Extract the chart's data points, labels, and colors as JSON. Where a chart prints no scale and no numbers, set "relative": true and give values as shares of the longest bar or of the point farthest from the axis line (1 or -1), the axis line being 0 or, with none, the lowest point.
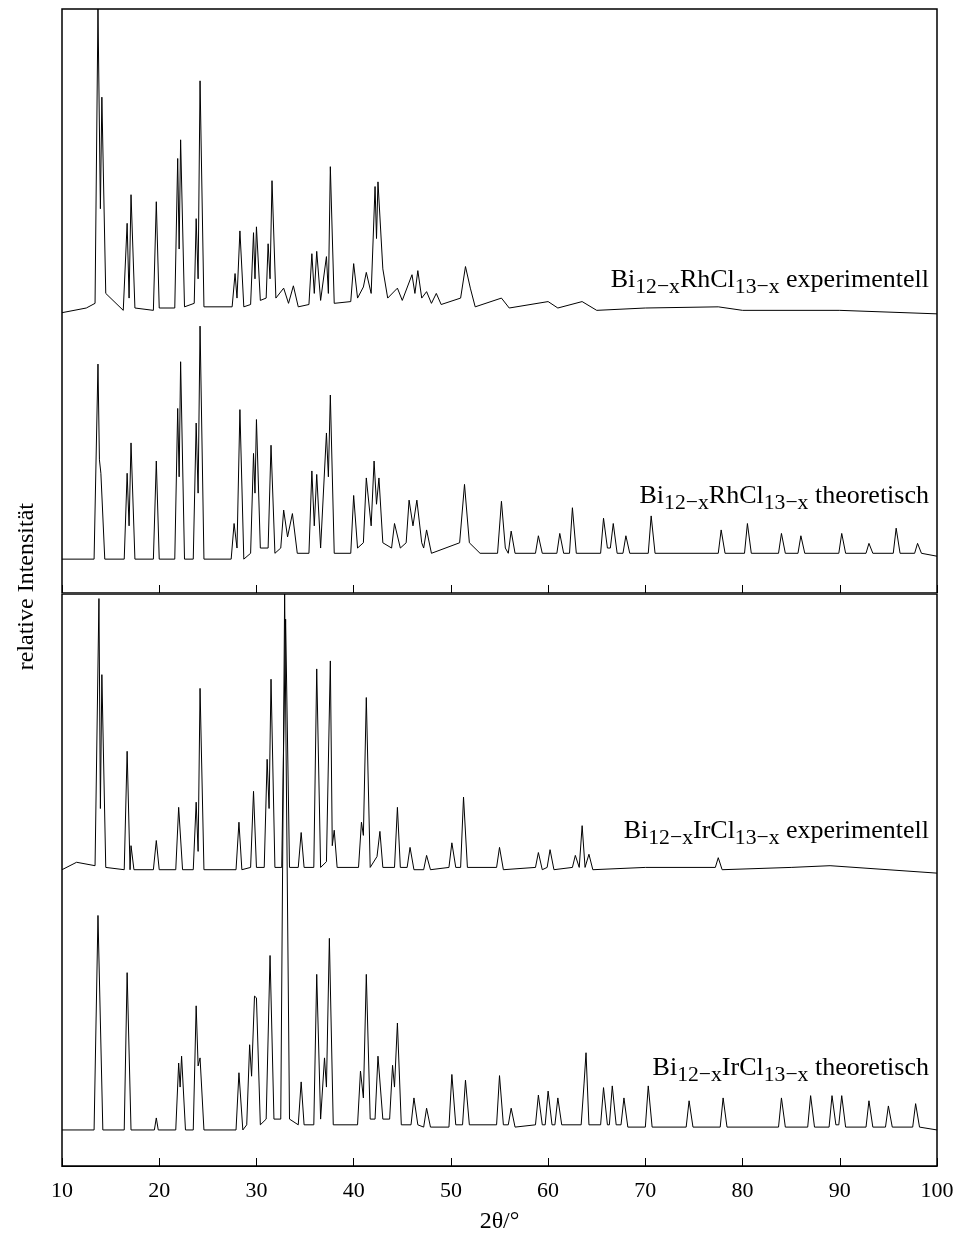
{
  "chart_data": [
    {
      "type": "line",
      "ylabel": "relative Intensität",
      "relative": true,
      "xlim": [
        10,
        100
      ],
      "xticks": [
        10,
        20,
        30,
        40,
        50,
        60,
        70,
        80,
        90,
        100
      ],
      "tick_labels": false,
      "marker": "none",
      "series": [
        {
          "name": "Bi$_{12−x}$RhCl$_{13−x}$ experimentell",
          "color": "#000000",
          "x": [
            10,
            12.5,
            13.4,
            13.7,
            13.95,
            14.1,
            14.5,
            16.3,
            16.7,
            16.9,
            17.1,
            17.5,
            19.4,
            19.7,
            20,
            21.6,
            21.9,
            22.05,
            22.2,
            22.6,
            23.6,
            23.8,
            24,
            24.2,
            24.6,
            27.5,
            27.8,
            28,
            28.3,
            28.7,
            29.4,
            29.7,
            29.85,
            30,
            30.4,
            31,
            31.2,
            31.4,
            31.6,
            32,
            32.8,
            33.3,
            33.8,
            34.3,
            35.4,
            35.7,
            35.95,
            36.2,
            36.6,
            37.2,
            37.4,
            37.6,
            38,
            39.7,
            40,
            40.4,
            41,
            41.3,
            41.8,
            42.2,
            42.35,
            42.5,
            43,
            43.5,
            44.5,
            45,
            46,
            46.3,
            46.6,
            47,
            47.5,
            48,
            48.5,
            49,
            51,
            51.5,
            52,
            52.5,
            55.2,
            56,
            60,
            61,
            63.5,
            65,
            70,
            77.5,
            80,
            90,
            100
          ],
          "values": [
            0.48,
            0.488,
            0.496,
            1.0,
            0.658,
            0.849,
            0.513,
            0.484,
            0.633,
            0.505,
            0.682,
            0.488,
            0.484,
            0.67,
            0.488,
            0.488,
            0.744,
            0.589,
            0.776,
            0.49,
            0.496,
            0.641,
            0.538,
            0.877,
            0.49,
            0.49,
            0.547,
            0.505,
            0.62,
            0.49,
            0.494,
            0.617,
            0.538,
            0.627,
            0.501,
            0.505,
            0.598,
            0.538,
            0.706,
            0.505,
            0.522,
            0.496,
            0.526,
            0.49,
            0.494,
            0.581,
            0.513,
            0.585,
            0.501,
            0.576,
            0.513,
            0.73,
            0.496,
            0.499,
            0.564,
            0.505,
            0.524,
            0.549,
            0.513,
            0.696,
            0.607,
            0.704,
            0.555,
            0.505,
            0.522,
            0.501,
            0.545,
            0.513,
            0.552,
            0.505,
            0.516,
            0.496,
            0.513,
            0.494,
            0.505,
            0.559,
            0.522,
            0.49,
            0.505,
            0.488,
            0.499,
            0.488,
            0.499,
            0.484,
            0.488,
            0.49,
            0.484,
            0.484,
            0.478
          ]
        },
        {
          "name": "Bi$_{12−x}$RhCl$_{13−x}$ theoretisch",
          "color": "#000000",
          "x": [
            10,
            13.3,
            13.7,
            13.85,
            14,
            14.4,
            16.4,
            16.7,
            16.9,
            17.1,
            17.5,
            19.4,
            19.7,
            20,
            21.6,
            21.9,
            22.05,
            22.2,
            22.6,
            23.5,
            23.8,
            24,
            24.2,
            24.6,
            27.4,
            27.7,
            28,
            28.3,
            28.7,
            29.4,
            29.7,
            29.85,
            30,
            30.4,
            31.2,
            31.5,
            31.9,
            32.5,
            32.8,
            33.2,
            33.7,
            34.2,
            35.4,
            35.7,
            35.95,
            36.2,
            36.6,
            37.2,
            37.4,
            37.6,
            38,
            39.7,
            40,
            40.4,
            41,
            41.3,
            41.8,
            42.1,
            42.35,
            42.6,
            43,
            43.9,
            44.2,
            44.8,
            45.4,
            45.7,
            46.1,
            46.5,
            47,
            47.2,
            47.5,
            48,
            50.9,
            51.4,
            51.9,
            53,
            54.8,
            55.2,
            55.6,
            55.9,
            56.2,
            56.6,
            58.7,
            59,
            59.4,
            60.9,
            61.2,
            61.6,
            62.2,
            62.5,
            62.9,
            65.4,
            65.7,
            66.1,
            66.4,
            66.7,
            67.1,
            67.7,
            68,
            68.4,
            70.3,
            70.6,
            71,
            77.5,
            77.8,
            78.2,
            80.2,
            80.5,
            80.9,
            83.7,
            84,
            84.4,
            85.7,
            86,
            86.4,
            89.9,
            90.2,
            90.6,
            92.7,
            93,
            93.4,
            95.5,
            95.8,
            96.2,
            97.7,
            98,
            98.4,
            100
          ],
          "values": [
            0.058,
            0.058,
            0.392,
            0.228,
            0.205,
            0.058,
            0.058,
            0.205,
            0.115,
            0.257,
            0.058,
            0.058,
            0.226,
            0.058,
            0.058,
            0.316,
            0.199,
            0.396,
            0.058,
            0.058,
            0.291,
            0.171,
            0.457,
            0.058,
            0.058,
            0.119,
            0.077,
            0.314,
            0.058,
            0.068,
            0.239,
            0.171,
            0.297,
            0.077,
            0.077,
            0.253,
            0.068,
            0.077,
            0.142,
            0.096,
            0.136,
            0.068,
            0.068,
            0.209,
            0.115,
            0.203,
            0.077,
            0.274,
            0.199,
            0.339,
            0.068,
            0.068,
            0.167,
            0.077,
            0.086,
            0.197,
            0.115,
            0.226,
            0.152,
            0.197,
            0.086,
            0.077,
            0.119,
            0.077,
            0.086,
            0.159,
            0.115,
            0.159,
            0.086,
            0.077,
            0.108,
            0.068,
            0.086,
            0.186,
            0.086,
            0.068,
            0.068,
            0.157,
            0.077,
            0.068,
            0.106,
            0.068,
            0.068,
            0.098,
            0.068,
            0.068,
            0.102,
            0.068,
            0.068,
            0.146,
            0.068,
            0.068,
            0.128,
            0.077,
            0.077,
            0.119,
            0.068,
            0.068,
            0.098,
            0.068,
            0.068,
            0.132,
            0.068,
            0.068,
            0.108,
            0.068,
            0.068,
            0.119,
            0.068,
            0.068,
            0.102,
            0.068,
            0.068,
            0.098,
            0.068,
            0.068,
            0.102,
            0.068,
            0.068,
            0.085,
            0.068,
            0.068,
            0.111,
            0.068,
            0.068,
            0.085,
            0.068,
            0.063
          ]
        }
      ]
    },
    {
      "type": "line",
      "xlabel": "2θ/°",
      "relative": true,
      "xlim": [
        10,
        100
      ],
      "xticks": [
        10,
        20,
        30,
        40,
        50,
        60,
        70,
        80,
        90,
        100
      ],
      "tick_labels": "x",
      "marker": "none",
      "series": [
        {
          "name": "Bi$_{12−x}$IrCl$_{13−x}$ experimentell",
          "color": "#000000",
          "x": [
            10,
            11.5,
            13.4,
            13.8,
            13.95,
            14.1,
            14.5,
            16.4,
            16.7,
            17,
            17.1,
            17.4,
            19.4,
            19.7,
            20,
            21.7,
            22,
            22.4,
            23.5,
            23.8,
            24,
            24.2,
            24.6,
            27.9,
            28.2,
            28.5,
            29.4,
            29.7,
            30,
            30.8,
            31.1,
            31.3,
            31.5,
            31.9,
            32.6,
            33,
            33.4,
            34.3,
            34.6,
            34.9,
            35.9,
            36.2,
            36.6,
            37.2,
            37.6,
            37.8,
            38,
            38.3,
            40.5,
            40.8,
            41,
            41.3,
            41.7,
            42.4,
            42.7,
            43,
            44.2,
            44.5,
            44.8,
            45.5,
            45.8,
            46.2,
            47.2,
            47.5,
            47.9,
            49.8,
            50.1,
            50.5,
            51,
            51.3,
            51.7,
            54.7,
            55,
            55.4,
            58.7,
            59,
            59.4,
            59.9,
            60.2,
            60.6,
            62.5,
            62.8,
            63.2,
            63.5,
            63.8,
            64.2,
            64.6,
            70,
            77.2,
            77.5,
            77.9,
            85,
            89,
            100
          ],
          "values": [
            0.518,
            0.531,
            0.525,
            0.992,
            0.625,
            0.859,
            0.522,
            0.518,
            0.725,
            0.518,
            0.56,
            0.518,
            0.518,
            0.569,
            0.518,
            0.518,
            0.627,
            0.518,
            0.518,
            0.636,
            0.55,
            0.835,
            0.518,
            0.518,
            0.601,
            0.518,
            0.522,
            0.655,
            0.522,
            0.522,
            0.711,
            0.625,
            0.851,
            0.522,
            0.522,
            0.956,
            0.522,
            0.522,
            0.583,
            0.522,
            0.522,
            0.869,
            0.522,
            0.532,
            0.883,
            0.56,
            0.587,
            0.522,
            0.522,
            0.601,
            0.578,
            0.819,
            0.522,
            0.541,
            0.585,
            0.522,
            0.522,
            0.627,
            0.522,
            0.522,
            0.557,
            0.518,
            0.518,
            0.543,
            0.518,
            0.522,
            0.565,
            0.522,
            0.522,
            0.645,
            0.522,
            0.522,
            0.557,
            0.518,
            0.522,
            0.548,
            0.518,
            0.522,
            0.553,
            0.518,
            0.522,
            0.543,
            0.522,
            0.595,
            0.522,
            0.545,
            0.518,
            0.522,
            0.522,
            0.539,
            0.518,
            0.522,
            0.525,
            0.512
          ]
        },
        {
          "name": "Bi$_{12−x}$IrCl$_{13−x}$ theoretisch",
          "color": "#000000",
          "x": [
            10,
            13.3,
            13.7,
            14.2,
            16.4,
            16.7,
            17.1,
            19.5,
            19.7,
            19.9,
            21.7,
            22,
            22.15,
            22.3,
            22.7,
            23.5,
            23.8,
            24,
            24.2,
            24.6,
            27.9,
            28.2,
            28.6,
            29,
            29.3,
            29.5,
            29.8,
            30,
            30.4,
            31,
            31.4,
            31.8,
            32.5,
            32.9,
            33.4,
            34.3,
            34.6,
            34.9,
            35.9,
            36.2,
            36.6,
            37,
            37.2,
            37.5,
            37.9,
            40.4,
            40.7,
            41,
            41.3,
            41.7,
            42.2,
            42.5,
            43,
            43.7,
            44,
            44.2,
            44.5,
            44.9,
            45.9,
            46.2,
            46.6,
            47.2,
            47.5,
            47.9,
            49.8,
            50.1,
            50.5,
            51.2,
            51.5,
            51.9,
            54.7,
            55,
            55.4,
            55.9,
            56.2,
            56.6,
            58.7,
            59,
            59.4,
            59.7,
            60,
            60.4,
            60.7,
            61,
            61.4,
            63.4,
            63.7,
            63.9,
            64.2,
            65.4,
            65.7,
            66.1,
            66.3,
            66.6,
            67,
            67.5,
            67.8,
            68.2,
            70,
            70.3,
            70.7,
            74.2,
            74.5,
            74.9,
            77.7,
            78,
            78.4,
            83.7,
            84,
            84.4,
            86.7,
            87,
            87.4,
            88.9,
            89.2,
            89.6,
            89.9,
            90.2,
            90.6,
            92.7,
            93,
            93.4,
            94.7,
            95,
            95.4,
            97.5,
            97.8,
            98.2,
            100
          ],
          "values": [
            0.063,
            0.063,
            0.438,
            0.063,
            0.063,
            0.338,
            0.063,
            0.063,
            0.084,
            0.063,
            0.063,
            0.18,
            0.138,
            0.192,
            0.063,
            0.063,
            0.28,
            0.175,
            0.189,
            0.063,
            0.063,
            0.163,
            0.063,
            0.072,
            0.212,
            0.157,
            0.297,
            0.294,
            0.072,
            0.082,
            0.368,
            0.082,
            0.082,
            1.0,
            0.082,
            0.072,
            0.147,
            0.072,
            0.072,
            0.335,
            0.082,
            0.189,
            0.138,
            0.398,
            0.072,
            0.072,
            0.166,
            0.119,
            0.335,
            0.082,
            0.082,
            0.192,
            0.082,
            0.082,
            0.176,
            0.138,
            0.25,
            0.072,
            0.072,
            0.119,
            0.072,
            0.068,
            0.101,
            0.068,
            0.068,
            0.16,
            0.072,
            0.072,
            0.15,
            0.072,
            0.072,
            0.158,
            0.072,
            0.072,
            0.101,
            0.068,
            0.072,
            0.124,
            0.072,
            0.072,
            0.131,
            0.072,
            0.072,
            0.119,
            0.072,
            0.072,
            0.145,
            0.198,
            0.072,
            0.072,
            0.137,
            0.072,
            0.072,
            0.14,
            0.072,
            0.072,
            0.119,
            0.068,
            0.068,
            0.14,
            0.068,
            0.068,
            0.114,
            0.068,
            0.068,
            0.119,
            0.068,
            0.068,
            0.119,
            0.068,
            0.068,
            0.123,
            0.068,
            0.068,
            0.123,
            0.072,
            0.072,
            0.123,
            0.068,
            0.068,
            0.114,
            0.068,
            0.068,
            0.105,
            0.068,
            0.068,
            0.109,
            0.068,
            0.063
          ]
        }
      ]
    }
  ]
}
